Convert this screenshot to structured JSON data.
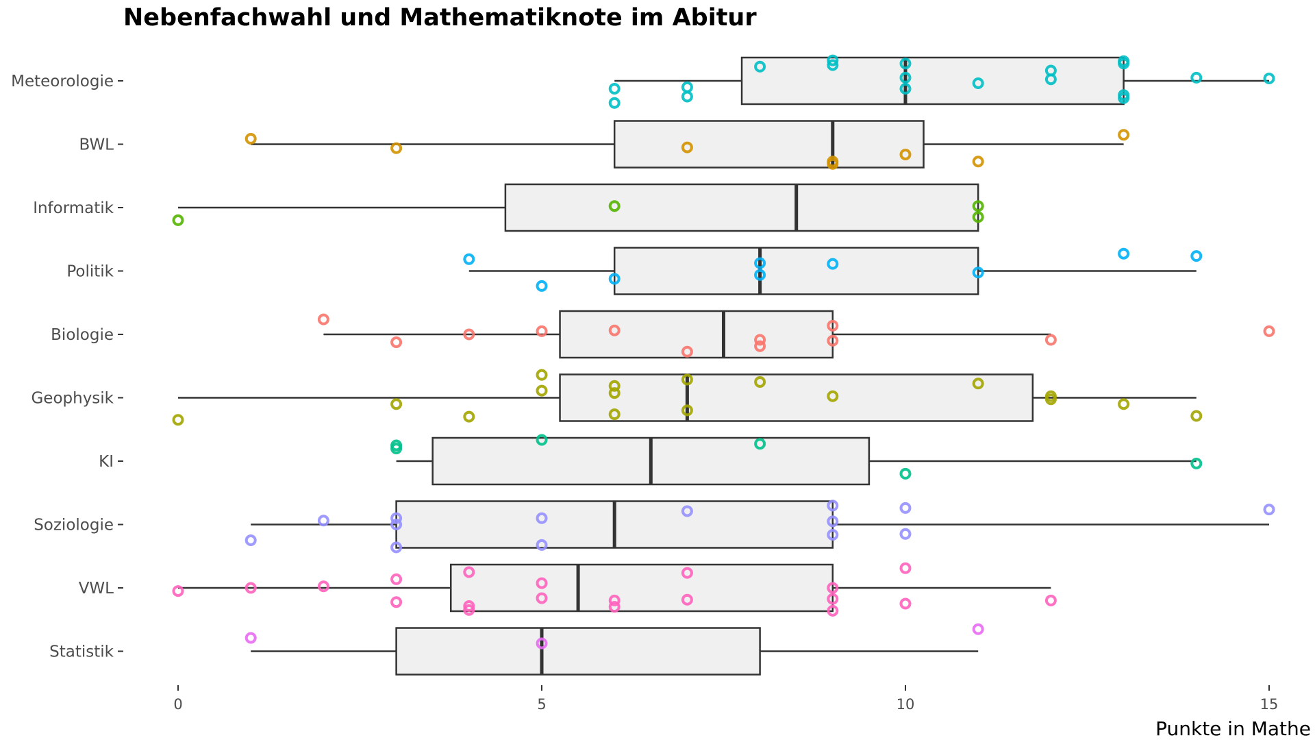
{
  "chart_data": {
    "type": "boxplot",
    "title": "Nebenfachwahl und Mathematiknote im Abitur",
    "xlabel": "Punkte in Mathe",
    "ylabel": "",
    "xlim": [
      0,
      15
    ],
    "x_ticks": [
      0,
      5,
      10,
      15
    ],
    "grid": false,
    "legend": "none",
    "categories": [
      "Meteorologie",
      "BWL",
      "Informatik",
      "Politik",
      "Biologie",
      "Geophysik",
      "KI",
      "Soziologie",
      "VWL",
      "Statistik"
    ],
    "series": [
      {
        "category": "Meteorologie",
        "color": "#00BFC4",
        "box": {
          "whisker_low": 6,
          "q1": 7.75,
          "median": 10,
          "q3": 13,
          "whisker_high": 15
        },
        "points": [
          {
            "x": 6,
            "y": -0.1
          },
          {
            "x": 6,
            "y": -0.28
          },
          {
            "x": 7,
            "y": -0.08
          },
          {
            "x": 7,
            "y": -0.2
          },
          {
            "x": 8,
            "y": 0.18
          },
          {
            "x": 9,
            "y": 0.26
          },
          {
            "x": 9,
            "y": 0.2
          },
          {
            "x": 10,
            "y": 0.22
          },
          {
            "x": 10,
            "y": 0.04
          },
          {
            "x": 10,
            "y": -0.1
          },
          {
            "x": 11,
            "y": -0.03
          },
          {
            "x": 12,
            "y": 0.13
          },
          {
            "x": 12,
            "y": 0.02
          },
          {
            "x": 13,
            "y": 0.25
          },
          {
            "x": 13,
            "y": 0.22
          },
          {
            "x": 13,
            "y": -0.18
          },
          {
            "x": 13,
            "y": -0.22
          },
          {
            "x": 14,
            "y": 0.04
          },
          {
            "x": 15,
            "y": 0.03
          }
        ]
      },
      {
        "category": "BWL",
        "color": "#D39200",
        "box": {
          "whisker_low": 1,
          "q1": 6,
          "median": 9,
          "q3": 10.25,
          "whisker_high": 13
        },
        "points": [
          {
            "x": 1,
            "y": 0.07
          },
          {
            "x": 3,
            "y": -0.05
          },
          {
            "x": 7,
            "y": -0.04
          },
          {
            "x": 9,
            "y": -0.22
          },
          {
            "x": 9,
            "y": -0.25
          },
          {
            "x": 10,
            "y": -0.13
          },
          {
            "x": 11,
            "y": -0.22
          },
          {
            "x": 13,
            "y": 0.12
          }
        ]
      },
      {
        "category": "Informatik",
        "color": "#53B400",
        "box": {
          "whisker_low": 0,
          "q1": 4.5,
          "median": 8.5,
          "q3": 11,
          "whisker_high": 11
        },
        "points": [
          {
            "x": 0,
            "y": -0.16
          },
          {
            "x": 6,
            "y": 0.02
          },
          {
            "x": 11,
            "y": 0.02
          },
          {
            "x": 11,
            "y": -0.12
          }
        ]
      },
      {
        "category": "Politik",
        "color": "#00B0F6",
        "box": {
          "whisker_low": 4,
          "q1": 6,
          "median": 8,
          "q3": 11,
          "whisker_high": 14
        },
        "points": [
          {
            "x": 4,
            "y": 0.15
          },
          {
            "x": 5,
            "y": -0.19
          },
          {
            "x": 6,
            "y": -0.1
          },
          {
            "x": 8,
            "y": 0.1
          },
          {
            "x": 8,
            "y": -0.05
          },
          {
            "x": 9,
            "y": 0.09
          },
          {
            "x": 11,
            "y": -0.02
          },
          {
            "x": 13,
            "y": 0.22
          },
          {
            "x": 14,
            "y": 0.19
          }
        ]
      },
      {
        "category": "Biologie",
        "color": "#F8766D",
        "box": {
          "whisker_low": 2,
          "q1": 5.25,
          "median": 7.5,
          "q3": 9,
          "whisker_high": 12
        },
        "points": [
          {
            "x": 2,
            "y": 0.19
          },
          {
            "x": 3,
            "y": -0.1
          },
          {
            "x": 4,
            "y": 0.0
          },
          {
            "x": 5,
            "y": 0.04
          },
          {
            "x": 6,
            "y": 0.05
          },
          {
            "x": 7,
            "y": -0.22
          },
          {
            "x": 8,
            "y": -0.07
          },
          {
            "x": 8,
            "y": -0.15
          },
          {
            "x": 9,
            "y": 0.11
          },
          {
            "x": 9,
            "y": -0.08
          },
          {
            "x": 12,
            "y": -0.07
          },
          {
            "x": 15,
            "y": 0.04
          }
        ]
      },
      {
        "category": "Geophysik",
        "color": "#A3A500",
        "box": {
          "whisker_low": 0,
          "q1": 5.25,
          "median": 7,
          "q3": 11.75,
          "whisker_high": 14
        },
        "points": [
          {
            "x": 0,
            "y": -0.28
          },
          {
            "x": 3,
            "y": -0.08
          },
          {
            "x": 4,
            "y": -0.24
          },
          {
            "x": 5,
            "y": 0.29
          },
          {
            "x": 5,
            "y": 0.09
          },
          {
            "x": 6,
            "y": 0.15
          },
          {
            "x": 6,
            "y": 0.06
          },
          {
            "x": 6,
            "y": -0.21
          },
          {
            "x": 7,
            "y": 0.23
          },
          {
            "x": 7,
            "y": -0.16
          },
          {
            "x": 8,
            "y": 0.2
          },
          {
            "x": 9,
            "y": 0.02
          },
          {
            "x": 11,
            "y": 0.18
          },
          {
            "x": 12,
            "y": 0.02
          },
          {
            "x": 12,
            "y": -0.02
          },
          {
            "x": 13,
            "y": -0.08
          },
          {
            "x": 14,
            "y": -0.23
          }
        ]
      },
      {
        "category": "KI",
        "color": "#00C08B",
        "box": {
          "whisker_low": 3,
          "q1": 3.5,
          "median": 6.5,
          "q3": 9.5,
          "whisker_high": 14
        },
        "points": [
          {
            "x": 3,
            "y": 0.2
          },
          {
            "x": 3,
            "y": 0.16
          },
          {
            "x": 5,
            "y": 0.27
          },
          {
            "x": 8,
            "y": 0.22
          },
          {
            "x": 10,
            "y": -0.16
          },
          {
            "x": 14,
            "y": -0.03
          }
        ]
      },
      {
        "category": "Soziologie",
        "color": "#9590FF",
        "box": {
          "whisker_low": 1,
          "q1": 3,
          "median": 6,
          "q3": 9,
          "whisker_high": 15
        },
        "points": [
          {
            "x": 1,
            "y": -0.2
          },
          {
            "x": 2,
            "y": 0.05
          },
          {
            "x": 3,
            "y": 0.08
          },
          {
            "x": 3,
            "y": 0.0
          },
          {
            "x": 3,
            "y": -0.29
          },
          {
            "x": 5,
            "y": 0.08
          },
          {
            "x": 5,
            "y": -0.26
          },
          {
            "x": 7,
            "y": 0.17
          },
          {
            "x": 9,
            "y": 0.24
          },
          {
            "x": 9,
            "y": 0.04
          },
          {
            "x": 9,
            "y": -0.13
          },
          {
            "x": 10,
            "y": 0.21
          },
          {
            "x": 10,
            "y": -0.12
          },
          {
            "x": 15,
            "y": 0.19
          }
        ]
      },
      {
        "category": "VWL",
        "color": "#FF62BC",
        "box": {
          "whisker_low": 0,
          "q1": 3.75,
          "median": 5.5,
          "q3": 9,
          "whisker_high": 12
        },
        "points": [
          {
            "x": 0,
            "y": -0.04
          },
          {
            "x": 1,
            "y": 0.0
          },
          {
            "x": 2,
            "y": 0.02
          },
          {
            "x": 3,
            "y": 0.11
          },
          {
            "x": 3,
            "y": -0.18
          },
          {
            "x": 4,
            "y": 0.2
          },
          {
            "x": 4,
            "y": -0.23
          },
          {
            "x": 4,
            "y": -0.28
          },
          {
            "x": 5,
            "y": 0.06
          },
          {
            "x": 5,
            "y": -0.13
          },
          {
            "x": 6,
            "y": -0.16
          },
          {
            "x": 6,
            "y": -0.24
          },
          {
            "x": 7,
            "y": 0.19
          },
          {
            "x": 7,
            "y": -0.15
          },
          {
            "x": 9,
            "y": 0.0
          },
          {
            "x": 9,
            "y": -0.14
          },
          {
            "x": 9,
            "y": -0.29
          },
          {
            "x": 10,
            "y": 0.25
          },
          {
            "x": 10,
            "y": -0.2
          },
          {
            "x": 12,
            "y": -0.16
          }
        ]
      },
      {
        "category": "Statistik",
        "color": "#E76BF3",
        "box": {
          "whisker_low": 1,
          "q1": 3,
          "median": 5,
          "q3": 8,
          "whisker_high": 11
        },
        "points": [
          {
            "x": 1,
            "y": 0.17
          },
          {
            "x": 5,
            "y": 0.1
          },
          {
            "x": 11,
            "y": 0.28
          }
        ]
      }
    ]
  }
}
